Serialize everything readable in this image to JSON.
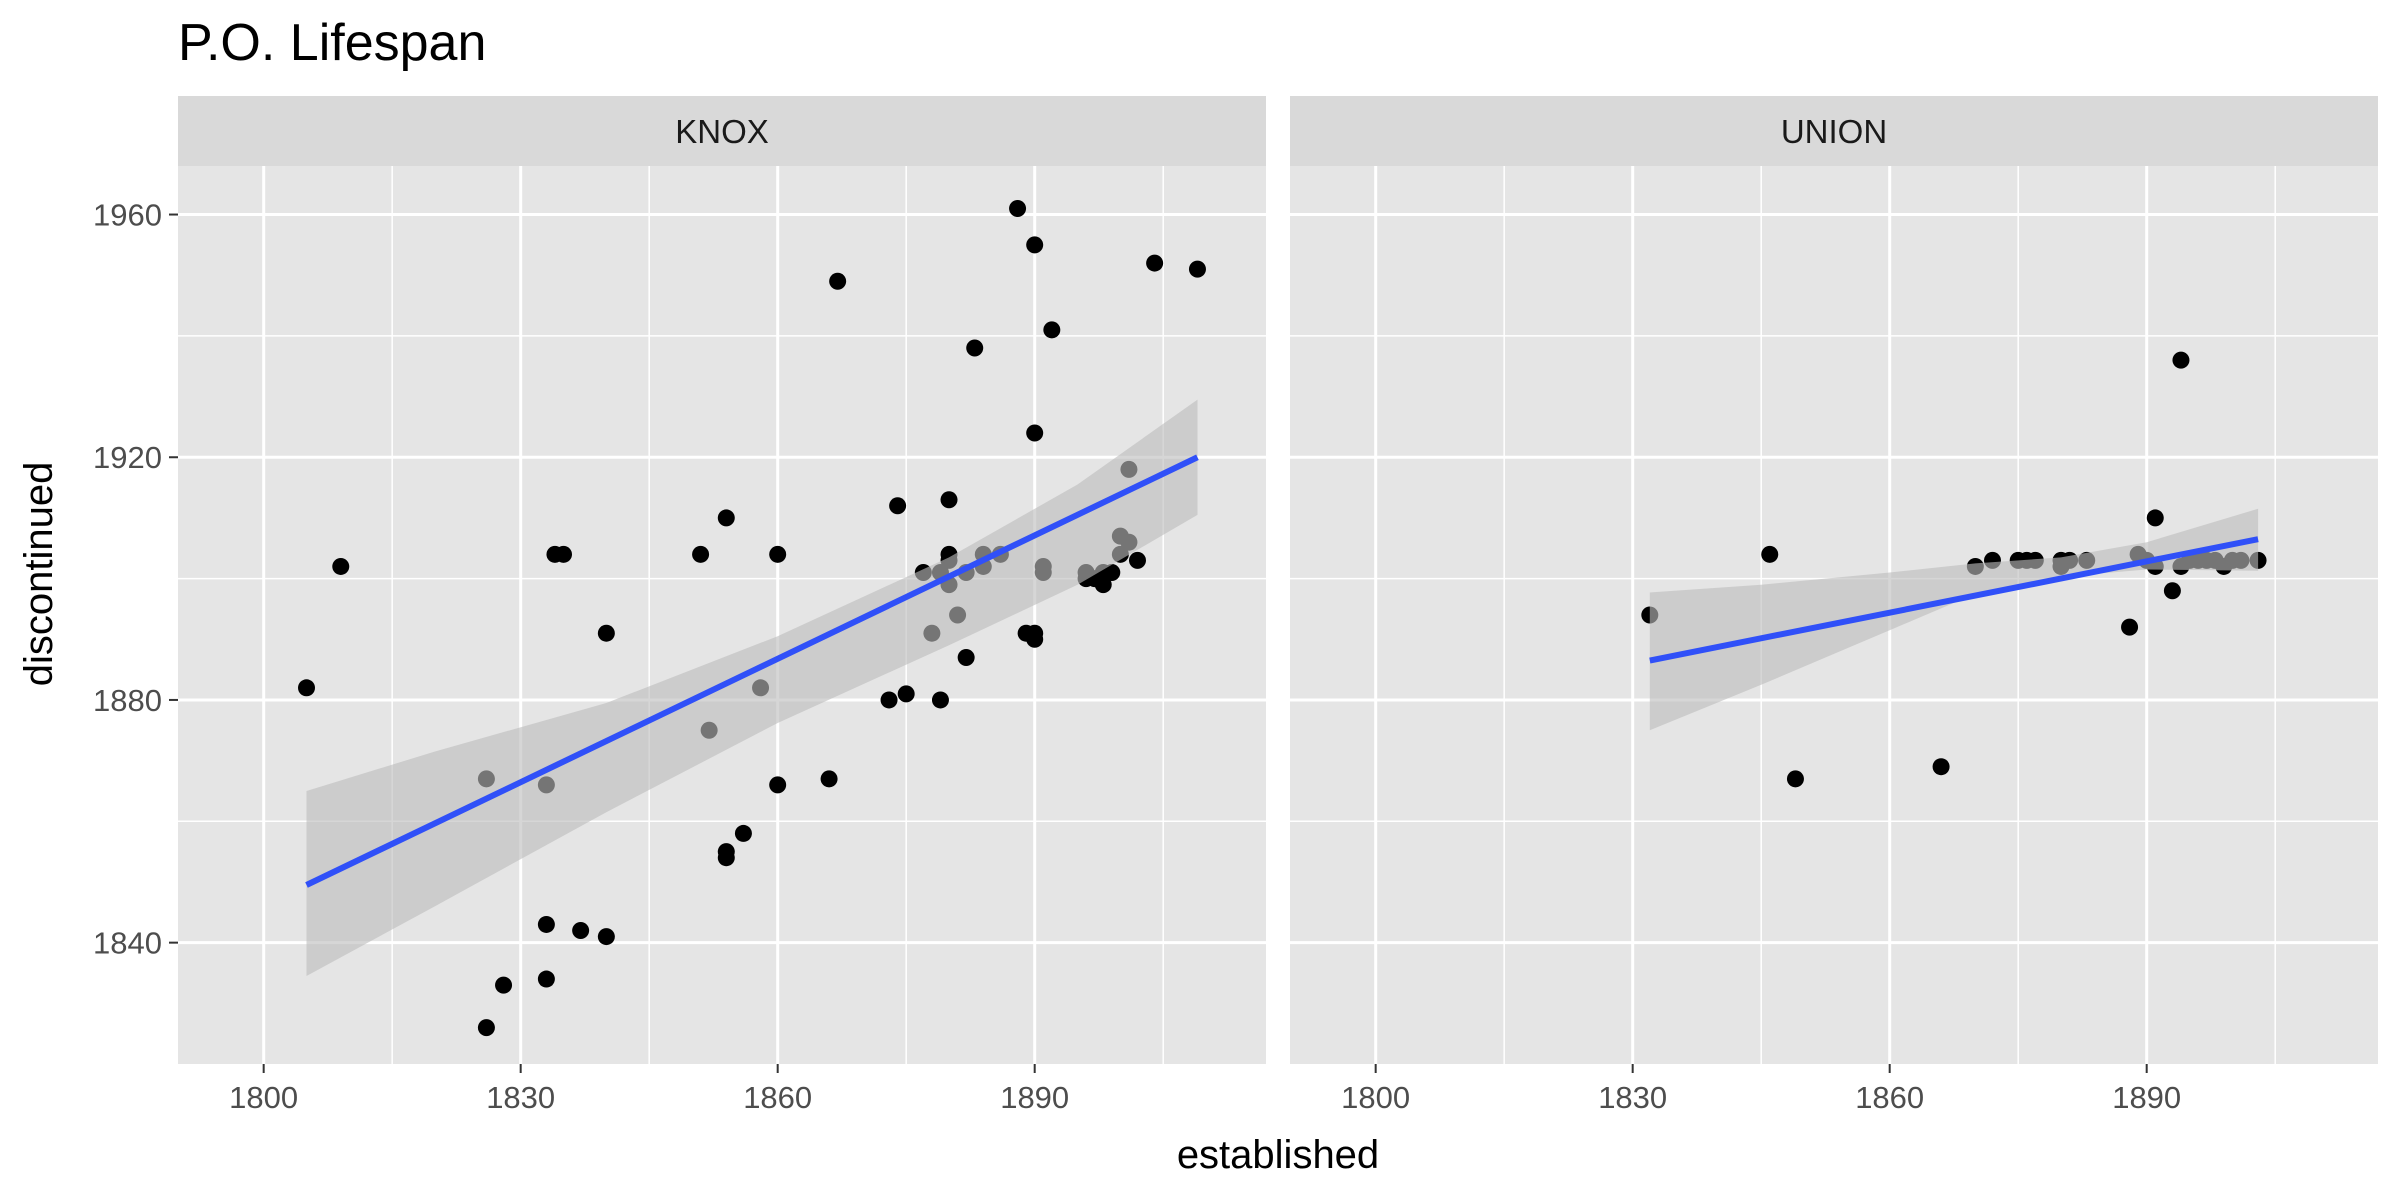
{
  "chart_data": {
    "type": "scatter",
    "title": "P.O. Lifespan",
    "xlabel": "established",
    "ylabel": "discontinued",
    "xlim": [
      1790,
      1917
    ],
    "ylim": [
      1820,
      1968
    ],
    "x_ticks": [
      1800,
      1830,
      1860,
      1890
    ],
    "y_ticks": [
      1840,
      1880,
      1920,
      1960
    ],
    "grid": true,
    "colors": {
      "panel_bg": "#e5e5e5",
      "strip_bg": "#d9d9d9",
      "grid": "#ffffff",
      "point": "#000000",
      "trend_line": "#3050f8",
      "ribbon": "#bdbdbd"
    },
    "panels": [
      {
        "label": "KNOX",
        "points": [
          [
            1805,
            1882
          ],
          [
            1809,
            1902
          ],
          [
            1826,
            1867
          ],
          [
            1826,
            1826
          ],
          [
            1828,
            1833
          ],
          [
            1833,
            1866
          ],
          [
            1833,
            1843
          ],
          [
            1833,
            1834
          ],
          [
            1834,
            1904
          ],
          [
            1835,
            1904
          ],
          [
            1837,
            1842
          ],
          [
            1840,
            1891
          ],
          [
            1840,
            1841
          ],
          [
            1851,
            1904
          ],
          [
            1852,
            1875
          ],
          [
            1854,
            1910
          ],
          [
            1854,
            1855
          ],
          [
            1854,
            1854
          ],
          [
            1856,
            1858
          ],
          [
            1858,
            1882
          ],
          [
            1860,
            1904
          ],
          [
            1860,
            1866
          ],
          [
            1866,
            1867
          ],
          [
            1867,
            1949
          ],
          [
            1873,
            1880
          ],
          [
            1874,
            1912
          ],
          [
            1875,
            1881
          ],
          [
            1877,
            1901
          ],
          [
            1878,
            1891
          ],
          [
            1879,
            1901
          ],
          [
            1879,
            1880
          ],
          [
            1880,
            1913
          ],
          [
            1880,
            1904
          ],
          [
            1880,
            1903
          ],
          [
            1880,
            1899
          ],
          [
            1881,
            1894
          ],
          [
            1882,
            1887
          ],
          [
            1882,
            1901
          ],
          [
            1883,
            1938
          ],
          [
            1884,
            1904
          ],
          [
            1884,
            1902
          ],
          [
            1886,
            1904
          ],
          [
            1888,
            1961
          ],
          [
            1889,
            1891
          ],
          [
            1890,
            1955
          ],
          [
            1890,
            1924
          ],
          [
            1890,
            1891
          ],
          [
            1890,
            1890
          ],
          [
            1891,
            1902
          ],
          [
            1891,
            1901
          ],
          [
            1892,
            1941
          ],
          [
            1896,
            1901
          ],
          [
            1896,
            1900
          ],
          [
            1897,
            1900
          ],
          [
            1898,
            1901
          ],
          [
            1898,
            1899
          ],
          [
            1899,
            1901
          ],
          [
            1900,
            1907
          ],
          [
            1900,
            1904
          ],
          [
            1901,
            1918
          ],
          [
            1901,
            1906
          ],
          [
            1902,
            1903
          ],
          [
            1904,
            1952
          ],
          [
            1909,
            1951
          ]
        ],
        "trend": {
          "x": [
            1805,
            1909
          ],
          "y": [
            1849.5,
            1920
          ]
        },
        "ribbon": {
          "x": [
            1805,
            1820,
            1840,
            1860,
            1880,
            1895,
            1909
          ],
          "lower": [
            1834.5,
            1846,
            1861.5,
            1876.2,
            1889,
            1899,
            1910.5
          ],
          "upper": [
            1865,
            1871.5,
            1879.5,
            1890.5,
            1903.5,
            1915.5,
            1929.5
          ]
        }
      },
      {
        "label": "UNION",
        "points": [
          [
            1832,
            1894
          ],
          [
            1846,
            1904
          ],
          [
            1849,
            1867
          ],
          [
            1866,
            1869
          ],
          [
            1870,
            1902
          ],
          [
            1872,
            1903
          ],
          [
            1875,
            1903
          ],
          [
            1876,
            1903
          ],
          [
            1877,
            1903
          ],
          [
            1880,
            1903
          ],
          [
            1880,
            1902
          ],
          [
            1881,
            1903
          ],
          [
            1883,
            1903
          ],
          [
            1888,
            1892
          ],
          [
            1889,
            1904
          ],
          [
            1890,
            1903
          ],
          [
            1891,
            1910
          ],
          [
            1891,
            1902
          ],
          [
            1893,
            1898
          ],
          [
            1894,
            1936
          ],
          [
            1894,
            1902
          ],
          [
            1895,
            1903
          ],
          [
            1896,
            1903
          ],
          [
            1897,
            1903
          ],
          [
            1898,
            1903
          ],
          [
            1899,
            1902
          ],
          [
            1900,
            1903
          ],
          [
            1901,
            1903
          ],
          [
            1903,
            1903
          ]
        ],
        "trend": {
          "x": [
            1832,
            1903
          ],
          "y": [
            1886.5,
            1906.5
          ]
        },
        "ribbon": {
          "x": [
            1832,
            1845,
            1860,
            1870,
            1880,
            1890,
            1903
          ],
          "lower": [
            1875,
            1882.5,
            1891.5,
            1897.5,
            1900.3,
            1901.5,
            1901.3
          ],
          "upper": [
            1897.7,
            1899,
            1901,
            1902.5,
            1903.5,
            1906,
            1911.5
          ]
        }
      }
    ]
  }
}
